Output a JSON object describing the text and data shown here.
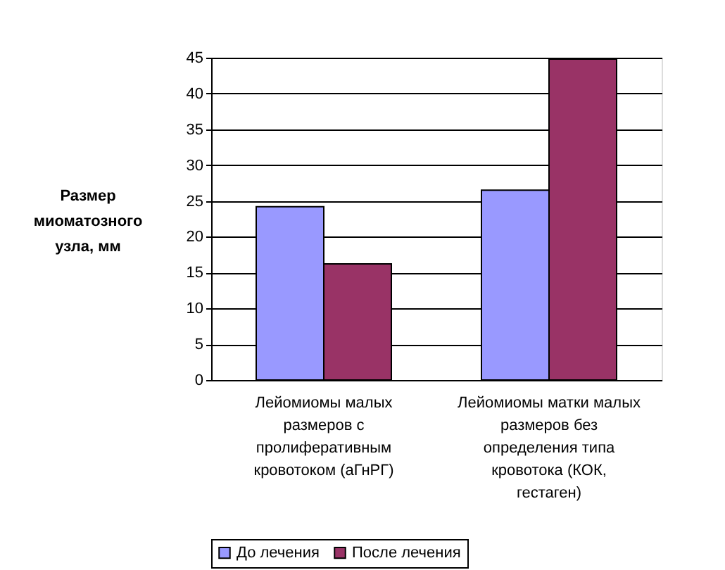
{
  "chart_data": {
    "type": "bar",
    "categories": [
      "Лейомиомы малых размеров с пролиферативным кровотоком (аГнРГ)",
      "Лейомиомы матки малых размеров без определения типа кровотока (КОК, гестаген)"
    ],
    "series": [
      {
        "name": "До лечения",
        "color": "#9999ff",
        "values": [
          24.2,
          26.5
        ]
      },
      {
        "name": "После лечения",
        "color": "#993366",
        "values": [
          16.2,
          44.8
        ]
      }
    ],
    "ylabel": "Размер миоматозного узла, мм",
    "ylim": [
      0,
      45
    ],
    "yticks": [
      0,
      5,
      10,
      15,
      20,
      25,
      30,
      35,
      40,
      45
    ],
    "grid": "y",
    "legend": "bottom"
  }
}
